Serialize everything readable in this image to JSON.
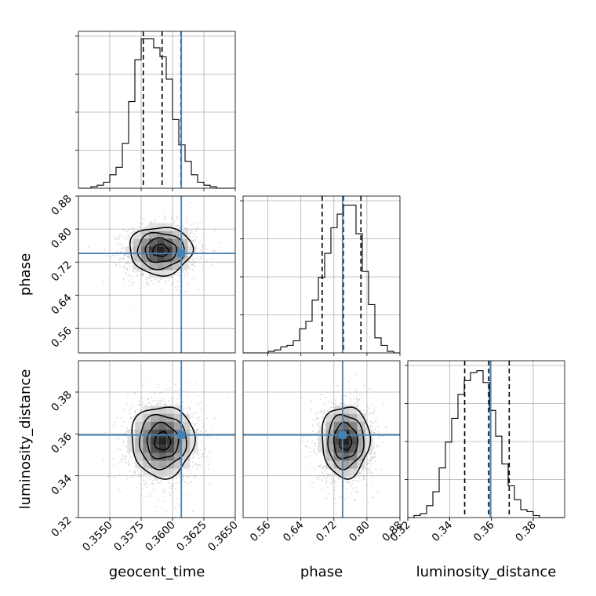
{
  "chart_data": {
    "type": "corner",
    "title": "",
    "parameters": [
      "geocent_time",
      "phase",
      "luminosity_distance"
    ],
    "truth": {
      "geocent_time": 0.3607,
      "phase": 0.741,
      "luminosity_distance": 0.3595
    },
    "truth_color": "#4682b4",
    "quantile_color": "#000000",
    "grid": true,
    "ranges": {
      "geocent_time": [
        0.3525,
        0.365
      ],
      "phase": [
        0.5,
        0.88
      ],
      "luminosity_distance": [
        0.32,
        0.395
      ]
    },
    "ticks": {
      "geocent_time": {
        "values": [
          0.355,
          0.3575,
          0.36,
          0.3625,
          0.365
        ],
        "labels": [
          "0.3550",
          "0.3575",
          "0.3600",
          "0.3625",
          "0.3650"
        ]
      },
      "phase": {
        "values": [
          0.56,
          0.64,
          0.72,
          0.8,
          0.88
        ],
        "labels": [
          "0.56",
          "0.64",
          "0.72",
          "0.80",
          "0.88"
        ]
      },
      "luminosity_distance": {
        "values": [
          0.32,
          0.34,
          0.36,
          0.38
        ],
        "labels": [
          "0.32",
          "0.34",
          "0.36",
          "0.38"
        ]
      }
    },
    "histograms": {
      "geocent_time": {
        "range": [
          0.3525,
          0.365
        ],
        "counts": [
          0,
          0,
          1,
          2,
          4,
          9,
          14,
          30,
          58,
          86,
          100,
          100,
          94,
          88,
          73,
          46,
          29,
          18,
          9,
          4,
          2,
          1,
          0,
          0,
          0
        ],
        "quantiles": [
          0.35767,
          0.35917,
          0.36067
        ],
        "ymax": 105
      },
      "phase": {
        "range": [
          0.5,
          0.88
        ],
        "counts": [
          0,
          0,
          0,
          0,
          1,
          2,
          4,
          5,
          8,
          16,
          21,
          35,
          50,
          66,
          83,
          92,
          98,
          98,
          79,
          54,
          32,
          10,
          5,
          1,
          0
        ],
        "quantiles": [
          0.6915,
          0.743,
          0.7855
        ],
        "ymax": 104
      },
      "luminosity_distance": {
        "range": [
          0.32,
          0.395
        ],
        "counts": [
          0,
          1,
          2,
          6,
          13,
          25,
          38,
          50,
          62,
          69,
          73,
          74,
          68,
          54,
          41,
          27,
          16,
          9,
          4,
          3,
          1,
          0,
          0,
          0,
          0
        ],
        "quantiles": [
          0.3472,
          0.3587,
          0.3685
        ],
        "ymax": 79
      }
    },
    "joint": {
      "geocent_time-phase": {
        "mean": [
          0.35905,
          0.748
        ],
        "sigma": [
          0.00125,
          0.029
        ],
        "rho": 0.05
      },
      "geocent_time-luminosity_distance": {
        "mean": [
          0.3592,
          0.3565
        ],
        "sigma": [
          0.00125,
          0.0085
        ],
        "rho": 0.0
      },
      "phase-luminosity_distance": {
        "mean": [
          0.748,
          0.3565
        ],
        "sigma": [
          0.029,
          0.0085
        ],
        "rho": 0.0
      }
    }
  }
}
